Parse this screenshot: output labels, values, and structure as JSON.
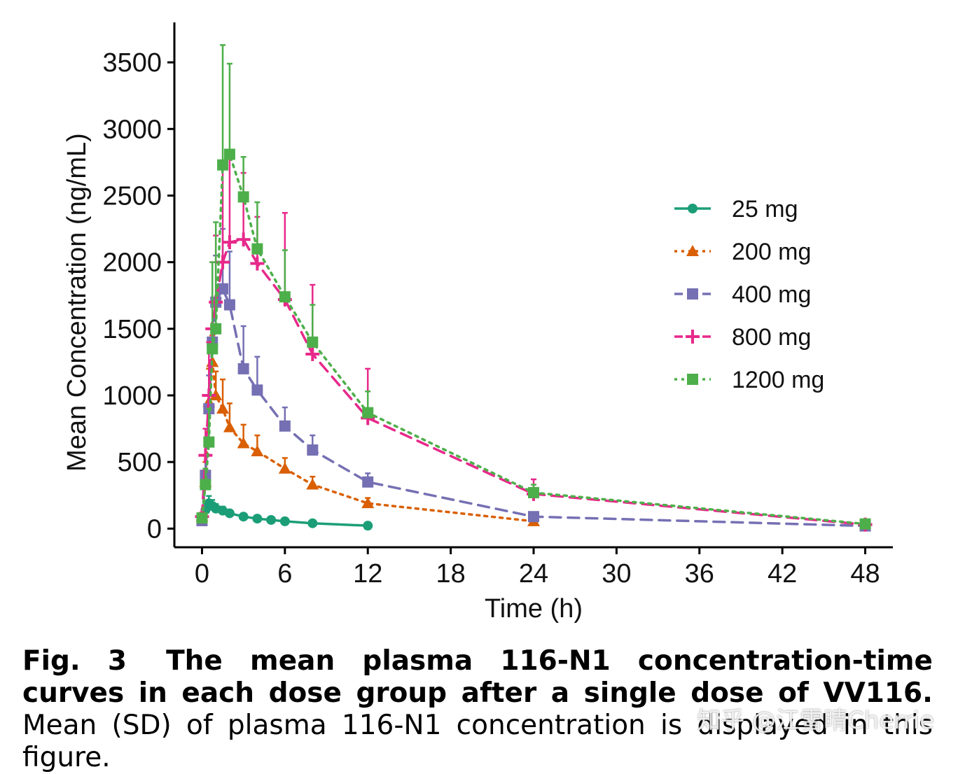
{
  "chart_data": {
    "type": "line",
    "title": "",
    "xlabel": "Time (h)",
    "ylabel": "Mean Concentration (ng/mL)",
    "xlim": [
      -2,
      50
    ],
    "ylim": [
      -140,
      3800
    ],
    "xticks": [
      0,
      6,
      12,
      18,
      24,
      30,
      36,
      42,
      48
    ],
    "yticks": [
      0,
      500,
      1000,
      1500,
      2000,
      2500,
      3000,
      3500
    ],
    "legend_position": "right",
    "series": [
      {
        "name": "25 mg",
        "color": "#1b9e77",
        "marker": "circle",
        "dash": "solid",
        "x": [
          0,
          0.25,
          0.5,
          0.75,
          1,
          1.5,
          2,
          3,
          4,
          5,
          6,
          8,
          12
        ],
        "y": [
          85,
          140,
          190,
          170,
          150,
          135,
          115,
          90,
          75,
          65,
          55,
          40,
          22
        ],
        "sd": [
          20,
          45,
          55,
          45,
          35,
          30,
          25,
          18,
          15,
          12,
          10,
          8,
          5
        ]
      },
      {
        "name": "200 mg",
        "color": "#d95f02",
        "marker": "triangle",
        "dash": "dotted",
        "x": [
          0,
          0.25,
          0.5,
          0.75,
          1,
          1.5,
          2,
          3,
          4,
          6,
          8,
          12,
          24
        ],
        "y": [
          90,
          350,
          950,
          1250,
          1000,
          900,
          760,
          640,
          580,
          450,
          330,
          190,
          55
        ],
        "sd": [
          30,
          150,
          250,
          200,
          180,
          220,
          180,
          140,
          120,
          80,
          60,
          40,
          15
        ]
      },
      {
        "name": "400 mg",
        "color": "#7570b3",
        "marker": "square",
        "dash": "dashed",
        "x": [
          0,
          0.25,
          0.5,
          0.75,
          1,
          1.5,
          2,
          3,
          4,
          6,
          8,
          12,
          24,
          48
        ],
        "y": [
          60,
          400,
          900,
          1400,
          1700,
          1800,
          1680,
          1200,
          1040,
          770,
          590,
          350,
          90,
          20
        ],
        "sd": [
          20,
          150,
          250,
          300,
          350,
          450,
          400,
          320,
          250,
          140,
          110,
          65,
          25,
          8
        ]
      },
      {
        "name": "800 mg",
        "color": "#e7298a",
        "marker": "plus",
        "dash": "dashed",
        "x": [
          0,
          0.25,
          0.5,
          0.75,
          1,
          1.5,
          2,
          3,
          4,
          6,
          8,
          12,
          24,
          48
        ],
        "y": [
          90,
          550,
          1000,
          1500,
          1700,
          2000,
          2150,
          2170,
          1990,
          1720,
          1310,
          830,
          260,
          30
        ],
        "sd": [
          30,
          200,
          400,
          500,
          500,
          700,
          650,
          500,
          350,
          650,
          520,
          370,
          110,
          12
        ]
      },
      {
        "name": "1200 mg",
        "color": "#4daf4a",
        "marker": "square",
        "dash": "dotted",
        "x": [
          0,
          0.25,
          0.5,
          0.75,
          1,
          1.5,
          2,
          3,
          4,
          6,
          8,
          12,
          24,
          48
        ],
        "y": [
          80,
          330,
          650,
          1350,
          1500,
          2730,
          2810,
          2490,
          2100,
          1740,
          1400,
          870,
          270,
          35
        ],
        "sd": [
          30,
          120,
          250,
          650,
          800,
          900,
          680,
          300,
          350,
          350,
          280,
          160,
          60,
          12
        ]
      }
    ]
  },
  "caption": {
    "fig_label": "Fig. 3",
    "bold_text": "The mean plasma 116-N1 concentration-time curves in each dose group after a single dose of VV116.",
    "regular_text": "Mean (SD) of plasma 116-N1 concentration is displayed in this figure."
  },
  "watermark": "知乎 @江雪晴Cherrie"
}
